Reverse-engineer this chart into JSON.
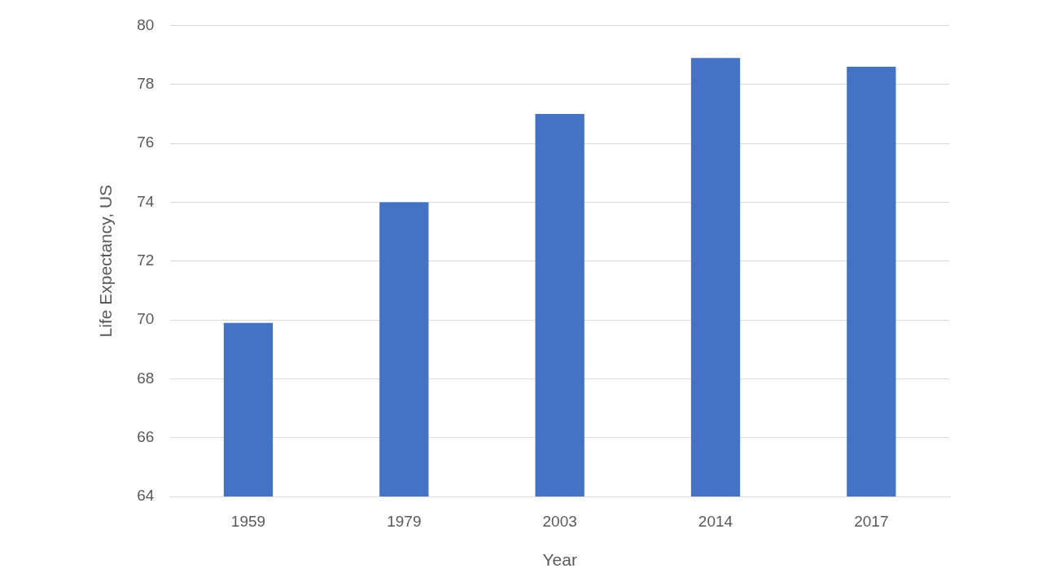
{
  "chart_data": {
    "type": "bar",
    "xlabel": "Year",
    "ylabel": "Life Expectancy, US",
    "categories": [
      "1959",
      "1979",
      "2003",
      "2014",
      "2017"
    ],
    "values": [
      69.9,
      74.0,
      77.0,
      78.9,
      78.6
    ],
    "color": "#4472c4",
    "ylim": [
      64,
      80
    ],
    "yticks": [
      64,
      66,
      68,
      70,
      72,
      74,
      76,
      78,
      80
    ],
    "grid": "y"
  }
}
